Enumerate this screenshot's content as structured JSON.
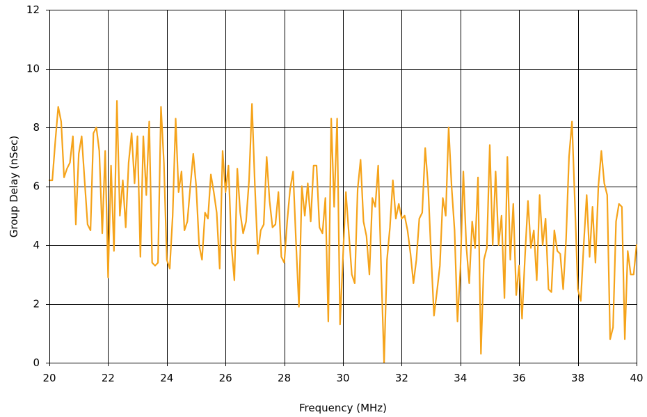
{
  "chart_data": {
    "type": "line",
    "xlabel": "Frequency (MHz)",
    "ylabel": "Group Delay (nSec)",
    "xlim": [
      20,
      40
    ],
    "ylim": [
      0,
      12
    ],
    "xticks": [
      20,
      22,
      24,
      26,
      28,
      30,
      32,
      34,
      36,
      38,
      40
    ],
    "yticks": [
      0,
      2,
      4,
      6,
      8,
      10,
      12
    ],
    "grid": true,
    "legend": "none",
    "colors": {
      "series": "#F5A31A",
      "grid": "#000000",
      "background": "#ffffff"
    },
    "series": [
      {
        "x": [
          20.0,
          20.1,
          20.2,
          20.3,
          20.4,
          20.5,
          20.6,
          20.7,
          20.8,
          20.9,
          21.0,
          21.1,
          21.2,
          21.3,
          21.4,
          21.5,
          21.6,
          21.7,
          21.8,
          21.9,
          22.0,
          22.1,
          22.2,
          22.3,
          22.4,
          22.5,
          22.6,
          22.7,
          22.8,
          22.9,
          23.0,
          23.1,
          23.2,
          23.3,
          23.4,
          23.5,
          23.6,
          23.7,
          23.8,
          23.9,
          24.0,
          24.1,
          24.2,
          24.3,
          24.4,
          24.5,
          24.6,
          24.7,
          24.8,
          24.9,
          25.0,
          25.1,
          25.2,
          25.3,
          25.4,
          25.5,
          25.6,
          25.7,
          25.8,
          25.9,
          26.0,
          26.1,
          26.2,
          26.3,
          26.4,
          26.5,
          26.6,
          26.7,
          26.8,
          26.9,
          27.0,
          27.1,
          27.2,
          27.3,
          27.4,
          27.5,
          27.6,
          27.7,
          27.8,
          27.9,
          28.0,
          28.1,
          28.2,
          28.3,
          28.4,
          28.5,
          28.6,
          28.7,
          28.8,
          28.9,
          29.0,
          29.1,
          29.2,
          29.3,
          29.4,
          29.5,
          29.6,
          29.7,
          29.8,
          29.9,
          30.0,
          30.1,
          30.2,
          30.3,
          30.4,
          30.5,
          30.6,
          30.7,
          30.8,
          30.9,
          31.0,
          31.1,
          31.2,
          31.3,
          31.4,
          31.5,
          31.6,
          31.7,
          31.8,
          31.9,
          32.0,
          32.1,
          32.2,
          32.3,
          32.4,
          32.5,
          32.6,
          32.7,
          32.8,
          32.9,
          33.0,
          33.1,
          33.2,
          33.3,
          33.4,
          33.5,
          33.6,
          33.7,
          33.8,
          33.9,
          34.0,
          34.1,
          34.2,
          34.3,
          34.4,
          34.5,
          34.6,
          34.7,
          34.8,
          34.9,
          35.0,
          35.1,
          35.2,
          35.3,
          35.4,
          35.5,
          35.6,
          35.7,
          35.8,
          35.9,
          36.0,
          36.1,
          36.2,
          36.3,
          36.4,
          36.5,
          36.6,
          36.7,
          36.8,
          36.9,
          37.0,
          37.1,
          37.2,
          37.3,
          37.4,
          37.5,
          37.6,
          37.7,
          37.8,
          37.9,
          38.0,
          38.1,
          38.2,
          38.3,
          38.4,
          38.5,
          38.6,
          38.7,
          38.8,
          38.9,
          39.0,
          39.1,
          39.2,
          39.3,
          39.4,
          39.5,
          39.6,
          39.7,
          39.8,
          39.9,
          40.0
        ],
        "values": [
          6.2,
          6.2,
          7.5,
          8.7,
          8.2,
          6.3,
          6.6,
          6.8,
          7.7,
          4.7,
          7.1,
          7.7,
          6.2,
          4.7,
          4.5,
          7.8,
          8.0,
          7.2,
          4.4,
          7.2,
          2.9,
          6.7,
          3.8,
          8.9,
          5.0,
          6.2,
          4.6,
          6.8,
          7.8,
          6.1,
          7.7,
          3.6,
          7.7,
          5.7,
          8.2,
          3.4,
          3.3,
          3.4,
          8.7,
          6.8,
          3.5,
          3.2,
          5.0,
          8.3,
          5.8,
          6.5,
          4.5,
          4.8,
          6.0,
          7.1,
          6.0,
          4.0,
          3.5,
          5.1,
          4.9,
          6.4,
          5.8,
          5.1,
          3.2,
          7.2,
          5.8,
          6.7,
          4.0,
          2.8,
          6.6,
          5.1,
          4.4,
          4.8,
          6.2,
          8.8,
          6.0,
          3.7,
          4.5,
          4.7,
          7.0,
          5.5,
          4.6,
          4.7,
          5.8,
          3.6,
          3.4,
          4.8,
          5.9,
          6.5,
          4.1,
          1.9,
          6.0,
          5.0,
          6.1,
          4.8,
          6.7,
          6.7,
          4.6,
          4.4,
          5.6,
          1.4,
          8.3,
          5.3,
          8.3,
          1.3,
          3.6,
          5.8,
          4.4,
          3.0,
          2.7,
          5.9,
          6.9,
          4.8,
          4.3,
          3.0,
          5.6,
          5.3,
          6.7,
          3.2,
          0.0,
          3.5,
          4.6,
          6.2,
          4.9,
          5.4,
          4.9,
          5.0,
          4.5,
          3.7,
          2.7,
          3.5,
          4.9,
          5.1,
          7.3,
          6.0,
          3.7,
          1.6,
          2.4,
          3.3,
          5.6,
          5.0,
          8.0,
          6.0,
          4.5,
          1.4,
          3.2,
          6.5,
          4.0,
          2.7,
          4.8,
          3.9,
          6.3,
          0.3,
          3.5,
          3.9,
          7.4,
          4.0,
          6.5,
          4.0,
          5.0,
          2.2,
          7.0,
          3.5,
          5.4,
          2.3,
          3.3,
          1.5,
          3.6,
          5.5,
          3.9,
          4.5,
          2.8,
          5.7,
          4.0,
          4.9,
          2.5,
          2.4,
          4.5,
          3.8,
          3.7,
          2.5,
          4.2,
          7.0,
          8.2,
          5.4,
          2.5,
          2.1,
          4.0,
          5.7,
          3.6,
          5.3,
          3.4,
          6.0,
          7.2,
          6.1,
          5.7,
          0.8,
          1.2,
          4.8,
          5.4,
          5.3,
          0.8,
          3.8,
          3.0,
          3.0,
          4.0
        ]
      }
    ]
  }
}
